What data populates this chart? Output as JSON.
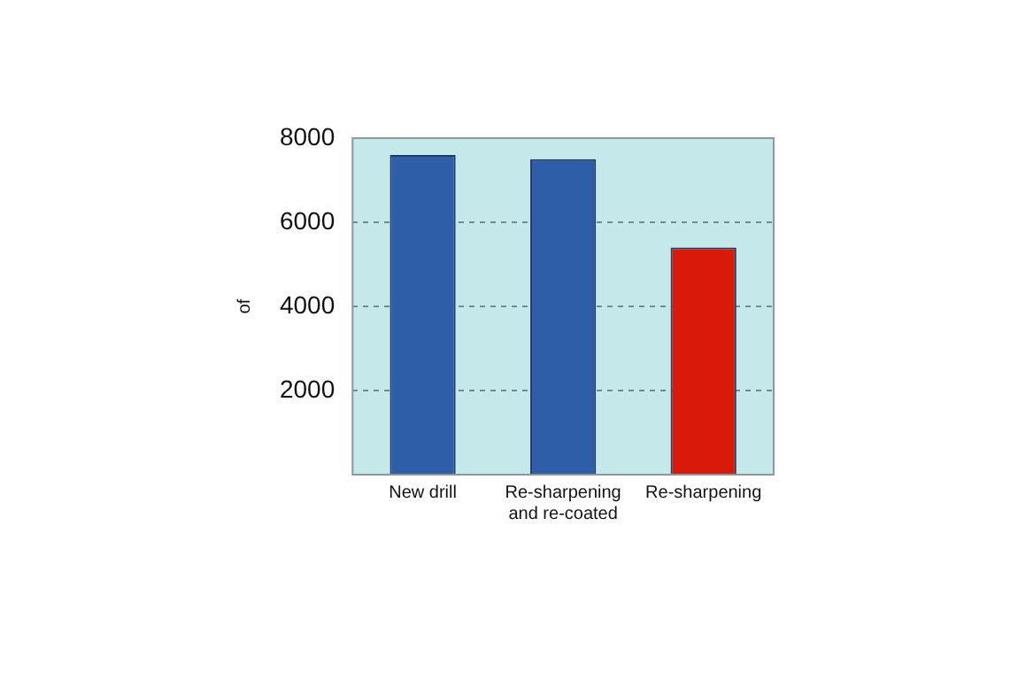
{
  "chart_data": {
    "type": "bar",
    "ylabel": "of",
    "categories": [
      "New drill",
      "Re-sharpening and re-coated",
      "Re-sharpening"
    ],
    "values": [
      7600,
      7500,
      5400
    ],
    "colors": [
      "#2f5ea8",
      "#2f5ea8",
      "#d91a0a"
    ],
    "ylim": [
      0,
      8000
    ],
    "yticks": [
      2000,
      4000,
      6000,
      8000
    ],
    "grid": "y",
    "legend": false
  }
}
